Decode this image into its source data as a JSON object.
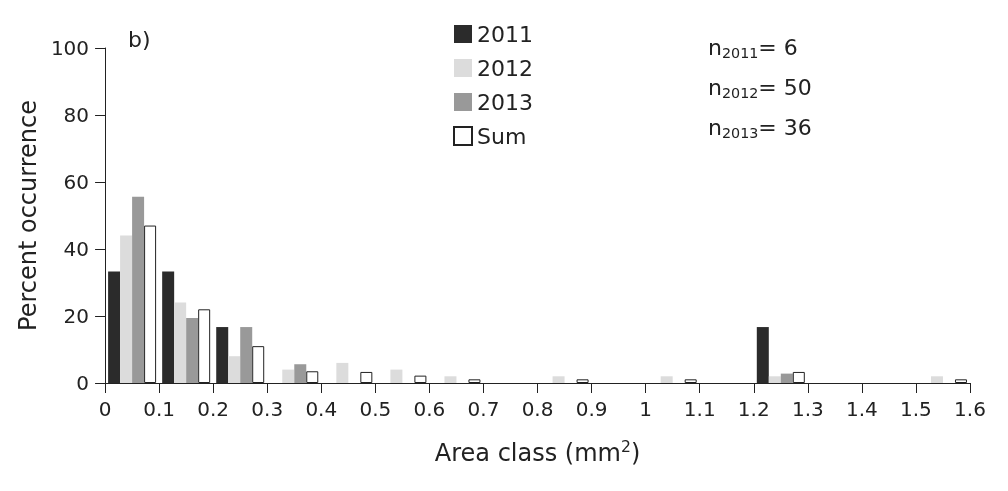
{
  "chart_data": {
    "type": "bar",
    "xlabel": "Area class (mm$^{2}$)",
    "ylabel": "Percent occurrence",
    "x": [
      0.05,
      0.15,
      0.25,
      0.35,
      0.45,
      0.55,
      0.65,
      0.75,
      0.85,
      0.95,
      1.05,
      1.15,
      1.25,
      1.35,
      1.45,
      1.55
    ],
    "series": [
      {
        "name": "2011",
        "color": "#2b2b2b",
        "values": [
          33.3,
          33.3,
          16.7,
          0,
          0,
          0,
          0,
          0,
          0,
          0,
          0,
          0,
          16.7,
          0,
          0,
          0
        ]
      },
      {
        "name": "2012",
        "color": "#dcdcdc",
        "values": [
          44,
          24,
          8,
          4,
          6,
          4,
          2,
          0,
          2,
          0,
          2,
          0,
          2,
          0,
          0,
          2
        ]
      },
      {
        "name": "2013",
        "color": "#999999",
        "values": [
          55.6,
          19.4,
          16.7,
          5.6,
          0,
          0,
          0,
          0,
          0,
          0,
          0,
          0,
          2.8,
          0,
          0,
          0
        ]
      },
      {
        "name": "Sum",
        "color": "#ffffff",
        "values": [
          47,
          22,
          11,
          3.5,
          3.3,
          2.2,
          1.1,
          0,
          1.1,
          0,
          1.1,
          0,
          3.3,
          0,
          0,
          1.1
        ]
      }
    ],
    "xlim": [
      0,
      1.6
    ],
    "xticks": [
      0,
      0.1,
      0.2,
      0.3,
      0.4,
      0.5,
      0.6,
      0.7,
      0.8,
      0.9,
      1,
      1.1,
      1.2,
      1.3,
      1.4,
      1.5,
      1.6
    ],
    "ylim": [
      0,
      100
    ],
    "yticks": [
      0,
      20,
      40,
      60,
      80,
      100
    ],
    "grid": false,
    "legend": "top",
    "annotations": [
      "b)",
      "n$_{2011}$= 6",
      "n$_{2012}$= 50",
      "n$_{2013}$= 36"
    ]
  }
}
